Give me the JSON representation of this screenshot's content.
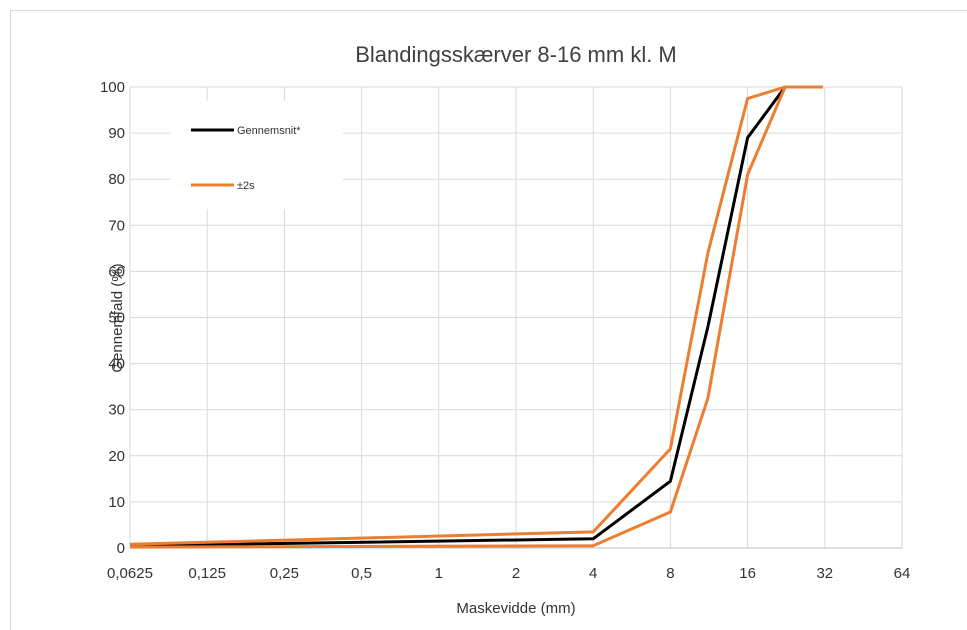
{
  "chart_data": {
    "type": "line",
    "title": "Blandingsskærver 8-16 mm  kl. M",
    "xlabel": "Maskevidde (mm)",
    "ylabel": "Gennemfald (%)",
    "x_scale": "log2",
    "x_ticks": [
      "0,0625",
      "0,125",
      "0,25",
      "0,5",
      "1",
      "2",
      "4",
      "8",
      "16",
      "32",
      "64"
    ],
    "x_tick_values": [
      0.0625,
      0.125,
      0.25,
      0.5,
      1,
      2,
      4,
      8,
      16,
      32,
      64
    ],
    "y_ticks": [
      "0",
      "10",
      "20",
      "30",
      "40",
      "50",
      "60",
      "70",
      "80",
      "90",
      "100"
    ],
    "ylim": [
      0,
      100
    ],
    "grid": true,
    "legend_position": "top-left",
    "series": [
      {
        "name": "Gennemsnit*",
        "color": "#000000",
        "x": [
          0.0625,
          4,
          8,
          11.2,
          16,
          22.4,
          31.5
        ],
        "y": [
          0.5,
          2,
          14.5,
          48,
          89,
          100,
          100
        ]
      },
      {
        "name": "±2s",
        "color": "#ED7D31",
        "x": [
          0.0625,
          4,
          8,
          11.2,
          16,
          22.4,
          31.5
        ],
        "y": [
          0.8,
          3.5,
          21.5,
          64,
          97.5,
          100,
          100
        ]
      },
      {
        "name": "",
        "color": "#ED7D31",
        "x": [
          0.0625,
          4,
          8,
          11.2,
          16,
          22.4,
          31.5
        ],
        "y": [
          0.2,
          0.5,
          7.8,
          32.5,
          81,
          100,
          100
        ]
      }
    ],
    "legend": [
      {
        "label": "Gennemsnit*",
        "color": "#000000"
      },
      {
        "label": "±2s",
        "color": "#ED7D31"
      }
    ]
  }
}
